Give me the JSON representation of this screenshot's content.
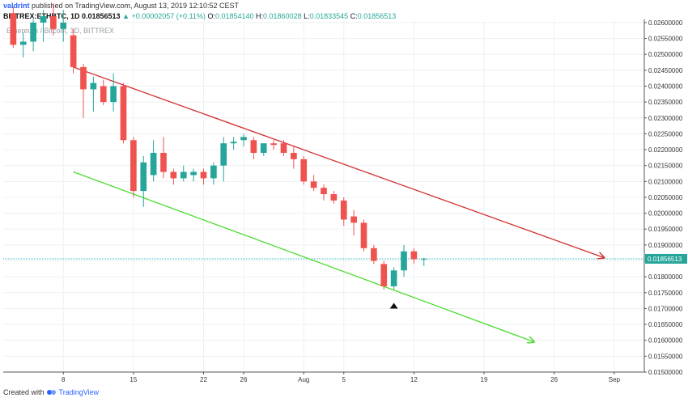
{
  "header": {
    "author": "valdrint",
    "published": "published on TradingView.com, August 13, 2019 12:10:52 CEST",
    "symbol": "BITTREX:ETHBTC, 1D",
    "last": "0.01856513",
    "change": "▲ +0.00002057 (+0.11%)",
    "o_label": "O:",
    "o": "0.01854140",
    "h_label": "H:",
    "h": "0.01860028",
    "l_label": "L:",
    "l": "0.01833545",
    "c_label": "C:",
    "c": "0.01856513"
  },
  "watermark": "Ethereum / Bitcoin, 1D, BITTREX",
  "footer": {
    "created": "Created with",
    "brand": "TradingView"
  },
  "colors": {
    "up": "#26a69a",
    "down": "#ef5350",
    "upper_channel": "#d32f2f",
    "lower_channel": "#4cdc2f",
    "price_line": "#2bb5c4",
    "grid": "#eef0f3"
  },
  "chart_data": {
    "type": "candlestick",
    "ylim": [
      0.015,
      0.0261
    ],
    "x_range": [
      "2019-07-02",
      "2019-09-04"
    ],
    "y_ticks": [
      "0.02600000",
      "0.02550000",
      "0.02500000",
      "0.02450000",
      "0.02400000",
      "0.02350000",
      "0.02300000",
      "0.02250000",
      "0.02200000",
      "0.02150000",
      "0.02100000",
      "0.02050000",
      "0.02000000",
      "0.01950000",
      "0.01900000",
      "0.01850000",
      "0.01800000",
      "0.01750000",
      "0.01700000",
      "0.01650000",
      "0.01600000",
      "0.01550000",
      "0.01500000"
    ],
    "x_ticks": [
      {
        "date": "2019-07-08",
        "label": "8"
      },
      {
        "date": "2019-07-15",
        "label": "15"
      },
      {
        "date": "2019-07-22",
        "label": "22"
      },
      {
        "date": "2019-07-26",
        "label": "26"
      },
      {
        "date": "2019-08-01",
        "label": "Aug"
      },
      {
        "date": "2019-08-05",
        "label": "5"
      },
      {
        "date": "2019-08-12",
        "label": "12"
      },
      {
        "date": "2019-08-19",
        "label": "19"
      },
      {
        "date": "2019-08-26",
        "label": "26"
      },
      {
        "date": "2019-09-01",
        "label": "Sep"
      }
    ],
    "last_price": 0.01856513,
    "last_price_label": "0.01856513",
    "candles": [
      {
        "d": "2019-07-03",
        "o": 0.0263,
        "h": 0.0265,
        "l": 0.0252,
        "c": 0.0253
      },
      {
        "d": "2019-07-04",
        "o": 0.0253,
        "h": 0.0257,
        "l": 0.0249,
        "c": 0.0254
      },
      {
        "d": "2019-07-05",
        "o": 0.0254,
        "h": 0.0261,
        "l": 0.0251,
        "c": 0.026
      },
      {
        "d": "2019-07-06",
        "o": 0.026,
        "h": 0.0264,
        "l": 0.0254,
        "c": 0.0262
      },
      {
        "d": "2019-07-07",
        "o": 0.0262,
        "h": 0.0266,
        "l": 0.0256,
        "c": 0.0258
      },
      {
        "d": "2019-07-08",
        "o": 0.0258,
        "h": 0.0264,
        "l": 0.0254,
        "c": 0.026
      },
      {
        "d": "2019-07-09",
        "o": 0.0256,
        "h": 0.0258,
        "l": 0.0244,
        "c": 0.0246
      },
      {
        "d": "2019-07-10",
        "o": 0.0246,
        "h": 0.0247,
        "l": 0.023,
        "c": 0.0239
      },
      {
        "d": "2019-07-11",
        "o": 0.0239,
        "h": 0.0243,
        "l": 0.0232,
        "c": 0.0241
      },
      {
        "d": "2019-07-12",
        "o": 0.024,
        "h": 0.0242,
        "l": 0.0234,
        "c": 0.0235
      },
      {
        "d": "2019-07-13",
        "o": 0.0235,
        "h": 0.0244,
        "l": 0.0232,
        "c": 0.024
      },
      {
        "d": "2019-07-14",
        "o": 0.024,
        "h": 0.0241,
        "l": 0.0222,
        "c": 0.0223
      },
      {
        "d": "2019-07-15",
        "o": 0.0223,
        "h": 0.0224,
        "l": 0.0205,
        "c": 0.0207
      },
      {
        "d": "2019-07-16",
        "o": 0.0207,
        "h": 0.0218,
        "l": 0.0202,
        "c": 0.0216
      },
      {
        "d": "2019-07-17",
        "o": 0.0212,
        "h": 0.0223,
        "l": 0.021,
        "c": 0.0219
      },
      {
        "d": "2019-07-18",
        "o": 0.0219,
        "h": 0.0224,
        "l": 0.0211,
        "c": 0.0213
      },
      {
        "d": "2019-07-19",
        "o": 0.0213,
        "h": 0.0214,
        "l": 0.0209,
        "c": 0.0211
      },
      {
        "d": "2019-07-20",
        "o": 0.0211,
        "h": 0.0215,
        "l": 0.021,
        "c": 0.0213
      },
      {
        "d": "2019-07-21",
        "o": 0.0212,
        "h": 0.0214,
        "l": 0.021,
        "c": 0.0213
      },
      {
        "d": "2019-07-22",
        "o": 0.0213,
        "h": 0.0214,
        "l": 0.0209,
        "c": 0.0211
      },
      {
        "d": "2019-07-23",
        "o": 0.0211,
        "h": 0.0216,
        "l": 0.0209,
        "c": 0.0215
      },
      {
        "d": "2019-07-24",
        "o": 0.0215,
        "h": 0.0224,
        "l": 0.021,
        "c": 0.0222
      },
      {
        "d": "2019-07-25",
        "o": 0.0222,
        "h": 0.0224,
        "l": 0.022,
        "c": 0.02225
      },
      {
        "d": "2019-07-26",
        "o": 0.0223,
        "h": 0.0225,
        "l": 0.0221,
        "c": 0.0224
      },
      {
        "d": "2019-07-27",
        "o": 0.0223,
        "h": 0.0224,
        "l": 0.0217,
        "c": 0.0219
      },
      {
        "d": "2019-07-28",
        "o": 0.0219,
        "h": 0.0222,
        "l": 0.0218,
        "c": 0.0222
      },
      {
        "d": "2019-07-29",
        "o": 0.0222,
        "h": 0.0223,
        "l": 0.022,
        "c": 0.02215
      },
      {
        "d": "2019-07-30",
        "o": 0.0222,
        "h": 0.0223,
        "l": 0.0218,
        "c": 0.0219
      },
      {
        "d": "2019-07-31",
        "o": 0.0219,
        "h": 0.0221,
        "l": 0.0214,
        "c": 0.0217
      },
      {
        "d": "2019-08-01",
        "o": 0.0217,
        "h": 0.0218,
        "l": 0.0209,
        "c": 0.021
      },
      {
        "d": "2019-08-02",
        "o": 0.021,
        "h": 0.0212,
        "l": 0.0207,
        "c": 0.0208
      },
      {
        "d": "2019-08-03",
        "o": 0.0208,
        "h": 0.0209,
        "l": 0.0204,
        "c": 0.0206
      },
      {
        "d": "2019-08-04",
        "o": 0.0206,
        "h": 0.0207,
        "l": 0.0203,
        "c": 0.0204
      },
      {
        "d": "2019-08-05",
        "o": 0.0204,
        "h": 0.0205,
        "l": 0.0196,
        "c": 0.0198
      },
      {
        "d": "2019-08-06",
        "o": 0.0199,
        "h": 0.0201,
        "l": 0.0193,
        "c": 0.0197
      },
      {
        "d": "2019-08-07",
        "o": 0.0197,
        "h": 0.0198,
        "l": 0.0188,
        "c": 0.0189
      },
      {
        "d": "2019-08-08",
        "o": 0.0189,
        "h": 0.019,
        "l": 0.0184,
        "c": 0.0185
      },
      {
        "d": "2019-08-09",
        "o": 0.0184,
        "h": 0.0185,
        "l": 0.0176,
        "c": 0.0177
      },
      {
        "d": "2019-08-10",
        "o": 0.0177,
        "h": 0.0183,
        "l": 0.0176,
        "c": 0.0182
      },
      {
        "d": "2019-08-11",
        "o": 0.0182,
        "h": 0.019,
        "l": 0.018,
        "c": 0.0188
      },
      {
        "d": "2019-08-12",
        "o": 0.0188,
        "h": 0.0189,
        "l": 0.0184,
        "c": 0.01855
      },
      {
        "d": "2019-08-13",
        "o": 0.0185414,
        "h": 0.01860028,
        "l": 0.01833545,
        "c": 0.01856513
      }
    ],
    "trendlines": [
      {
        "name": "upper_channel",
        "color": "#d32f2f",
        "p1": {
          "d": "2019-07-09",
          "v": 0.0246
        },
        "p2": {
          "d": "2019-08-31",
          "v": 0.0186
        },
        "arrow": true
      },
      {
        "name": "lower_channel",
        "color": "#4cdc2f",
        "p1": {
          "d": "2019-07-09",
          "v": 0.0213
        },
        "p2": {
          "d": "2019-08-24",
          "v": 0.01595
        },
        "arrow": true
      }
    ],
    "markers": [
      {
        "type": "triangle-up",
        "d": "2019-08-10",
        "v": 0.0171
      }
    ]
  }
}
